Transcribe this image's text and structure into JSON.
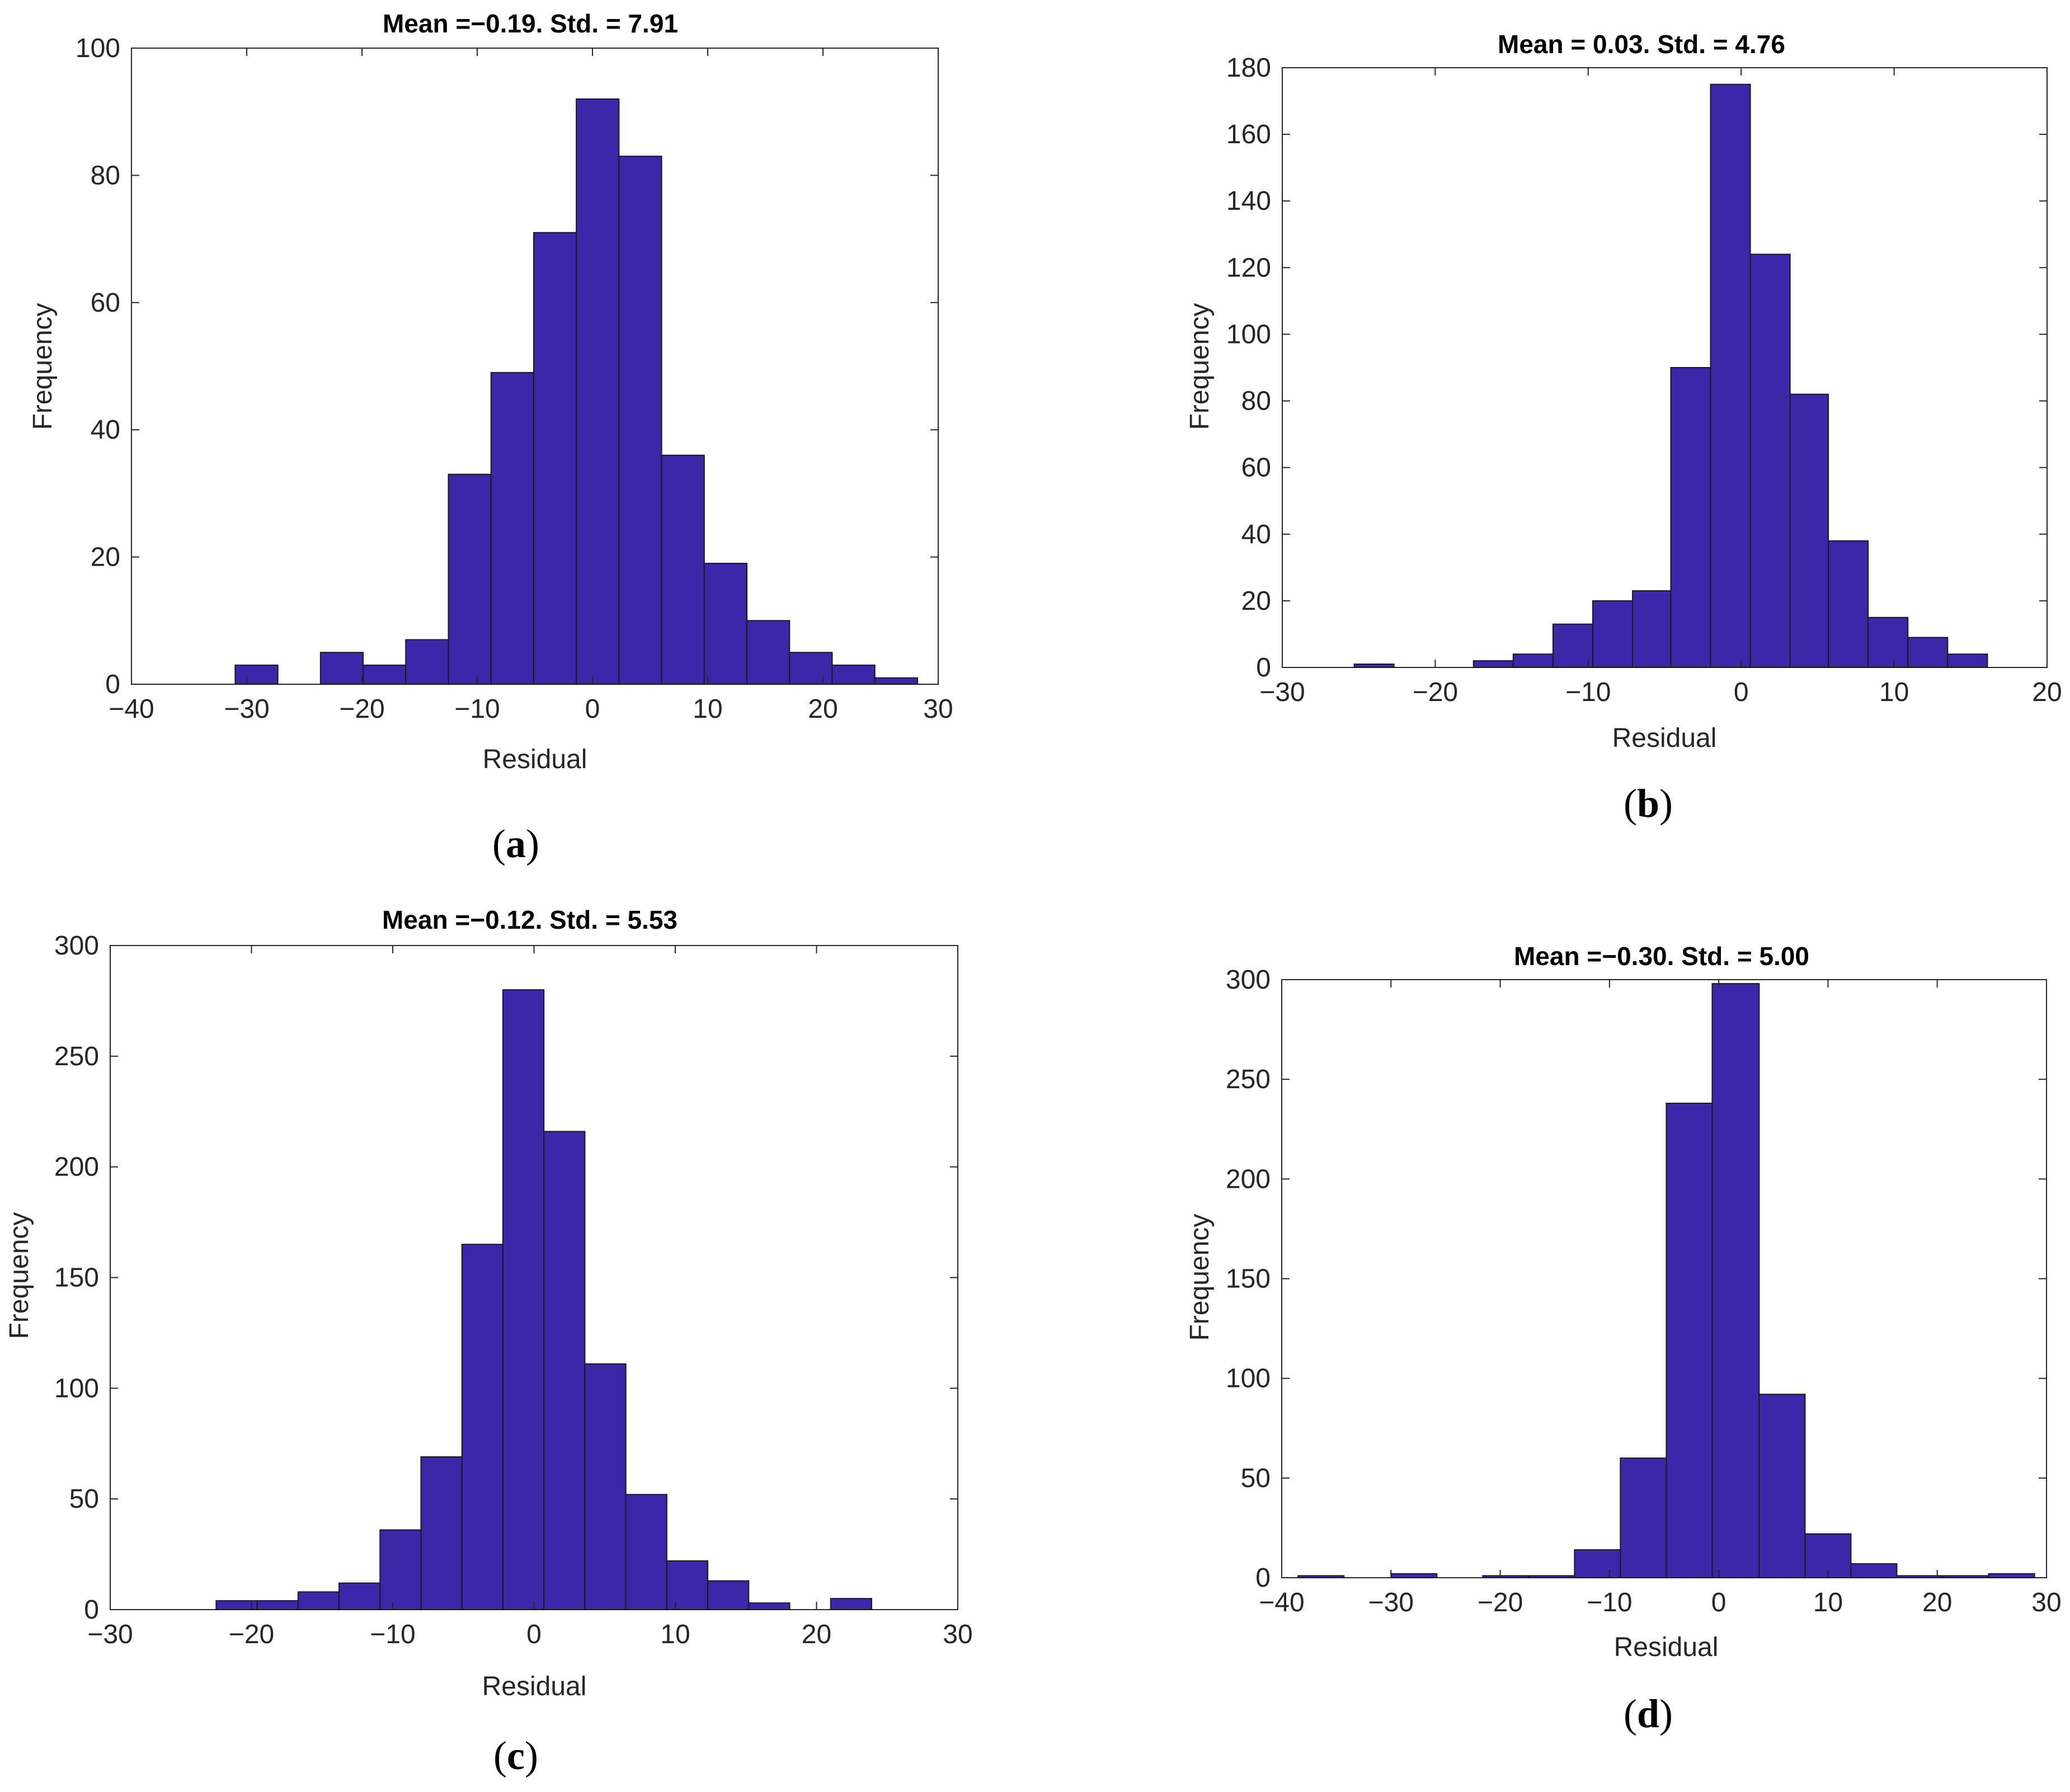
{
  "colors": {
    "bar": "#3b27a8",
    "bar_edge": "#1a1a1a",
    "axis": "#262626"
  },
  "chart_data": [
    {
      "type": "bar",
      "panel": "a",
      "title": "Mean =−0.19. Std. = 7.91",
      "xlabel": "Residual",
      "ylabel": "Frequency",
      "xlim": [
        -40,
        30
      ],
      "ylim": [
        0,
        100
      ],
      "xticks": [
        -40,
        -30,
        -20,
        -10,
        0,
        10,
        20,
        30
      ],
      "xtick_labels": [
        "−40",
        "−30",
        "−20",
        "−10",
        "0",
        "10",
        "20",
        "30"
      ],
      "yticks": [
        0,
        20,
        40,
        60,
        80,
        100
      ],
      "ytick_labels": [
        "0",
        "20",
        "40",
        "60",
        "80",
        "100"
      ],
      "bin_edges": [
        -31,
        -27.3,
        -23.6,
        -19.9,
        -16.2,
        -12.5,
        -8.8,
        -5.1,
        -1.4,
        2.3,
        6.0,
        9.7,
        13.4,
        17.1,
        20.8,
        24.5,
        28.2
      ],
      "values": [
        3,
        0,
        5,
        3,
        7,
        33,
        49,
        71,
        92,
        83,
        36,
        19,
        10,
        5,
        3,
        1
      ],
      "caption": "a"
    },
    {
      "type": "bar",
      "panel": "b",
      "title": "Mean = 0.03. Std. = 4.76",
      "xlabel": "Residual",
      "ylabel": "Frequency",
      "xlim": [
        -30,
        20
      ],
      "ylim": [
        0,
        180
      ],
      "xticks": [
        -30,
        -20,
        -10,
        0,
        10,
        20
      ],
      "xtick_labels": [
        "−30",
        "−20",
        "−10",
        "0",
        "10",
        "20"
      ],
      "yticks": [
        0,
        20,
        40,
        60,
        80,
        100,
        120,
        140,
        160,
        180
      ],
      "ytick_labels": [
        "0",
        "20",
        "40",
        "60",
        "80",
        "100",
        "120",
        "140",
        "160",
        "180"
      ],
      "bin_edges": [
        -25.3,
        -22.7,
        -20.1,
        -17.5,
        -14.9,
        -12.3,
        -9.7,
        -7.1,
        -4.6,
        -2.0,
        0.6,
        3.2,
        5.7,
        8.3,
        10.9,
        13.5,
        16.1
      ],
      "values": [
        1,
        0,
        0,
        2,
        4,
        13,
        20,
        23,
        90,
        175,
        124,
        82,
        38,
        15,
        9,
        4
      ],
      "caption": "b"
    },
    {
      "type": "bar",
      "panel": "c",
      "title": "Mean =−0.12. Std. = 5.53",
      "xlabel": "Residual",
      "ylabel": "Frequency",
      "xlim": [
        -30,
        30
      ],
      "ylim": [
        0,
        300
      ],
      "xticks": [
        -30,
        -20,
        -10,
        0,
        10,
        20,
        30
      ],
      "xtick_labels": [
        "−30",
        "−20",
        "−10",
        "0",
        "10",
        "20",
        "30"
      ],
      "yticks": [
        0,
        50,
        100,
        150,
        200,
        250,
        300
      ],
      "ytick_labels": [
        "0",
        "50",
        "100",
        "150",
        "200",
        "250",
        "300"
      ],
      "bin_edges": [
        -22.5,
        -19.6,
        -16.7,
        -13.8,
        -10.9,
        -8.0,
        -5.1,
        -2.2,
        0.7,
        3.6,
        6.5,
        9.4,
        12.3,
        15.2,
        18.1,
        21.0,
        23.9
      ],
      "values": [
        4,
        4,
        8,
        12,
        36,
        69,
        165,
        280,
        216,
        111,
        52,
        22,
        13,
        3,
        0,
        5
      ],
      "caption": "c"
    },
    {
      "type": "bar",
      "panel": "d",
      "title": "Mean =−0.30. Std. = 5.00",
      "xlabel": "Residual",
      "ylabel": "Frequency",
      "xlim": [
        -40,
        30
      ],
      "ylim": [
        0,
        300
      ],
      "xticks": [
        -40,
        -30,
        -20,
        -10,
        0,
        10,
        20,
        30
      ],
      "xtick_labels": [
        "−40",
        "−30",
        "−20",
        "−10",
        "0",
        "10",
        "20",
        "30"
      ],
      "yticks": [
        0,
        50,
        100,
        150,
        200,
        250,
        300
      ],
      "ytick_labels": [
        "0",
        "50",
        "100",
        "150",
        "200",
        "250",
        "300"
      ],
      "bin_edges": [
        -38.5,
        -34.3,
        -30.0,
        -25.8,
        -21.6,
        -17.4,
        -13.2,
        -9.0,
        -4.8,
        -0.6,
        3.7,
        7.9,
        12.1,
        16.3,
        20.5,
        24.7,
        28.9
      ],
      "values": [
        1,
        0,
        2,
        0,
        1,
        1,
        14,
        60,
        238,
        298,
        92,
        22,
        7,
        1,
        1,
        2
      ],
      "caption": "d"
    }
  ]
}
